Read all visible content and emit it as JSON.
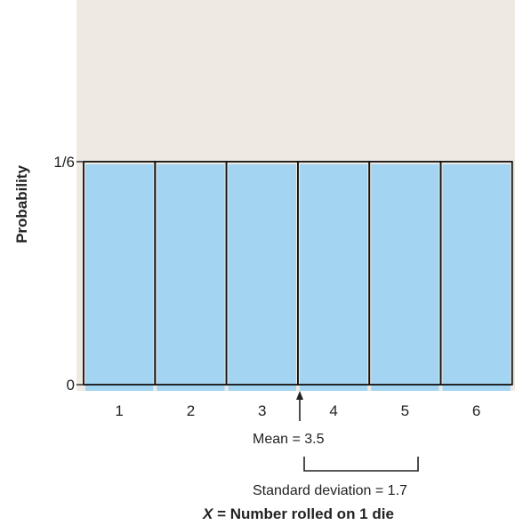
{
  "chart_data": {
    "type": "bar",
    "categories": [
      "1",
      "2",
      "3",
      "4",
      "5",
      "6"
    ],
    "values": [
      0.1667,
      0.1667,
      0.1667,
      0.1667,
      0.1667,
      0.1667
    ],
    "ylabel": "Probability",
    "xlabel_var": "X",
    "xlabel_rest": " = Number rolled on 1 die",
    "y_ticks": [
      {
        "label": "0",
        "value": 0
      },
      {
        "label": "1/6",
        "value": 0.1667
      }
    ],
    "ylim": [
      0,
      0.28
    ],
    "mean": 3.5,
    "mean_label": "Mean = 3.5",
    "sd": 1.7,
    "sd_label": "Standard deviation = 1.7",
    "colors": {
      "background": "#efe9e3",
      "bar": "#a3d5f2",
      "outline": "#111111"
    }
  }
}
